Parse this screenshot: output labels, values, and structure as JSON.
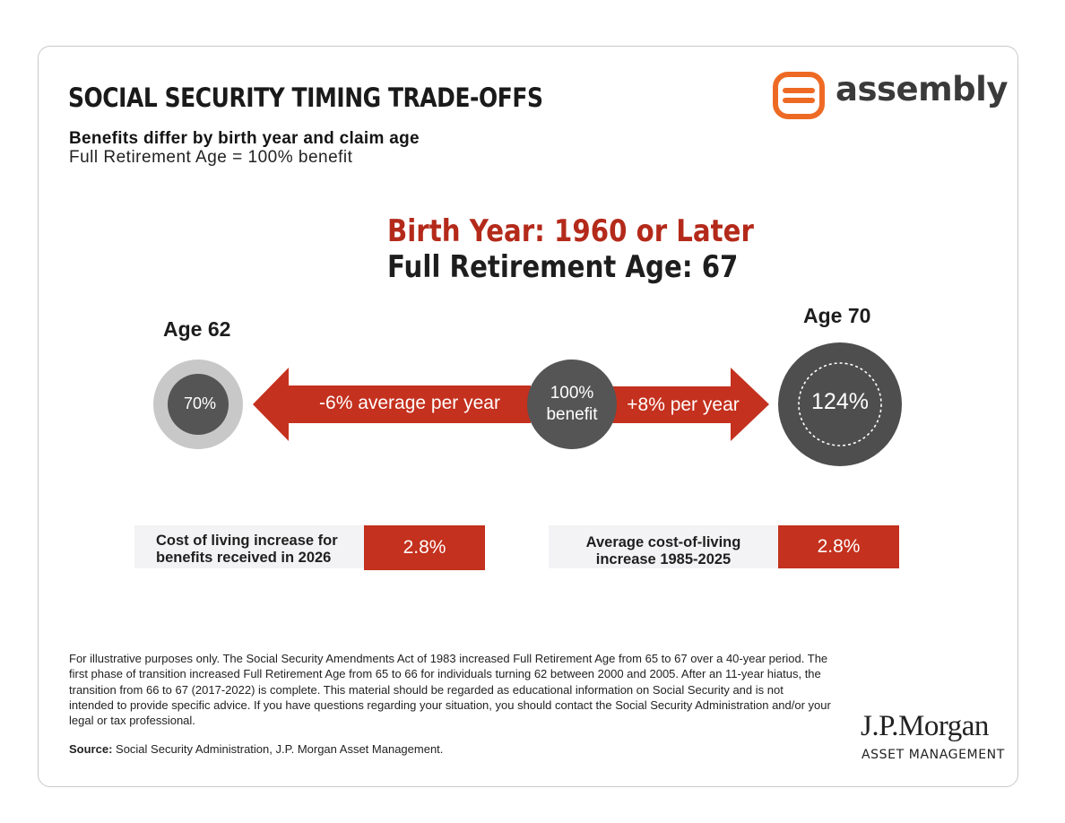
{
  "title": "SOCIAL SECURITY TIMING TRADE-OFFS",
  "subtitle": "Benefits differ by birth year and claim age",
  "subnote": "Full Retirement Age = 100% benefit",
  "logo": {
    "text": "assembly",
    "icon": "assembly-logo-icon",
    "color": "#ee6a24"
  },
  "heading": {
    "birth_year": "Birth Year: 1960 or Later",
    "fra": "Full Retirement Age: 67"
  },
  "ages": {
    "early": {
      "label": "Age 62",
      "percent": "70%"
    },
    "full": {
      "line1": "100%",
      "line2": "benefit"
    },
    "late": {
      "label": "Age 70",
      "percent": "124%"
    }
  },
  "arrows": {
    "left": "-6% average per year",
    "right": "+8% per year"
  },
  "info": {
    "left": {
      "line1": "Cost of living increase for",
      "line2": "benefits received in 2026",
      "value": "2.8%"
    },
    "right": {
      "line1": "Average cost-of-living",
      "line2": "increase 1985-2025",
      "value": "2.8%"
    }
  },
  "disclaimer": "For illustrative purposes only. The Social Security Amendments Act of 1983 increased Full Retirement Age from 65 to 67 over a 40-year period. The first phase of transition increased Full Retirement Age from 65 to 66 for individuals turning 62 between 2000 and 2005. After an 11-year hiatus, the transition from 66 to 67 (2017-2022) is complete. This material should be regarded as educational information on Social Security and is not intended to provide specific advice. If you have questions regarding your situation, you should contact the Social Security Administration and/or your legal or tax professional.",
  "source": {
    "label": "Source:",
    "text": " Social Security Administration, J.P. Morgan Asset Management."
  },
  "jpm": {
    "name": "J.P.Morgan",
    "sub": "ASSET MANAGEMENT"
  },
  "colors": {
    "accent_red": "#c4311e",
    "heading_red": "#b42a1a",
    "circle_dark": "#555555",
    "circle_light": "#c8c8c8",
    "circle_large": "#4e4e4e"
  }
}
